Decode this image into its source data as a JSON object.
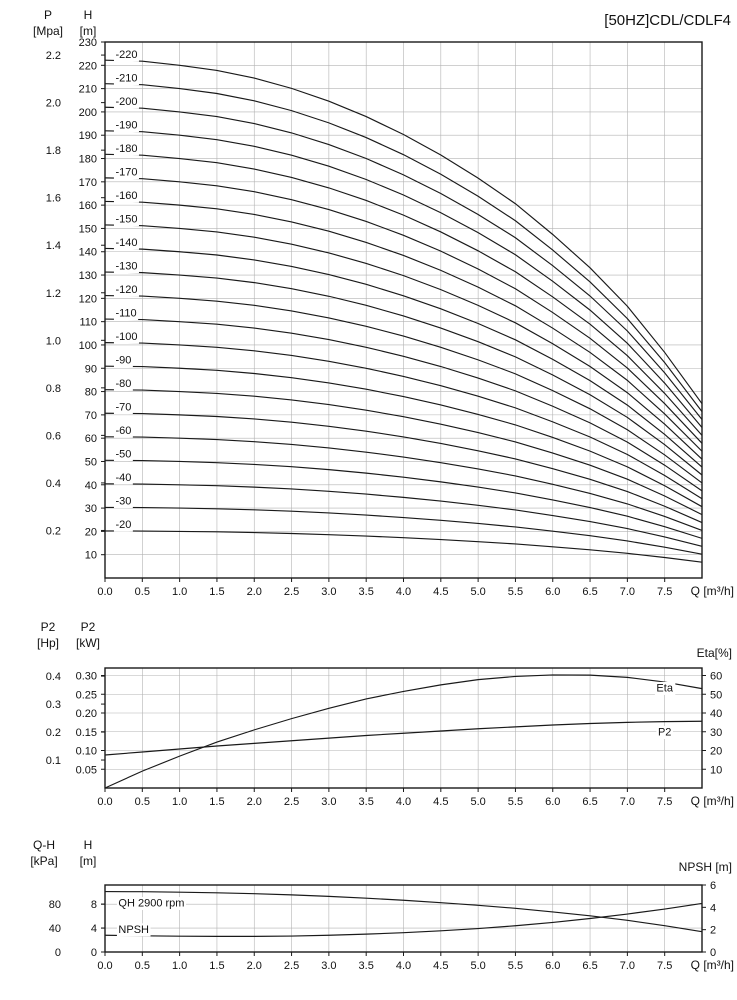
{
  "chart_data": [
    {
      "type": "line",
      "name": "head-capacity",
      "title": "[50HZ]CDL/CDLF4",
      "x": {
        "label": "Q [m³/h]",
        "min": 0,
        "max": 8,
        "tick_step": 0.5,
        "tick_max": 7.5
      },
      "axes": {
        "left_outer": {
          "title": "P",
          "unit": "[Mpa]",
          "max": 2.255,
          "ticks": [
            "0.2",
            "0.4",
            "0.6",
            "0.8",
            "1.0",
            "1.2",
            "1.4",
            "1.6",
            "1.8",
            "2.0",
            "2.2"
          ]
        },
        "left_inner": {
          "title": "H",
          "unit": "[m]",
          "max": 230,
          "ticks": [
            "10",
            "20",
            "30",
            "40",
            "50",
            "60",
            "70",
            "80",
            "90",
            "100",
            "110",
            "120",
            "130",
            "140",
            "150",
            "160",
            "170",
            "180",
            "190",
            "200",
            "210",
            "220",
            "230"
          ]
        }
      },
      "q": [
        0,
        0.5,
        1,
        1.5,
        2,
        2.5,
        3,
        3.5,
        4,
        4.5,
        5,
        5.5,
        6,
        6.5,
        7,
        7.5,
        8
      ],
      "per_stage_head": [
        10.1,
        10.08,
        10.0,
        9.9,
        9.75,
        9.55,
        9.3,
        9.0,
        8.65,
        8.25,
        7.8,
        7.3,
        6.7,
        6.05,
        5.3,
        4.4,
        3.4
      ],
      "stage_curves": [
        {
          "label": "-220",
          "stages": 22
        },
        {
          "label": "-210",
          "stages": 21
        },
        {
          "label": "-200",
          "stages": 20
        },
        {
          "label": "-190",
          "stages": 19
        },
        {
          "label": "-180",
          "stages": 18
        },
        {
          "label": "-170",
          "stages": 17
        },
        {
          "label": "-160",
          "stages": 16
        },
        {
          "label": "-150",
          "stages": 15
        },
        {
          "label": "-140",
          "stages": 14
        },
        {
          "label": "-130",
          "stages": 13
        },
        {
          "label": "-120",
          "stages": 12
        },
        {
          "label": "-110",
          "stages": 11
        },
        {
          "label": "-100",
          "stages": 10
        },
        {
          "label": "-90",
          "stages": 9
        },
        {
          "label": "-80",
          "stages": 8
        },
        {
          "label": "-70",
          "stages": 7
        },
        {
          "label": "-60",
          "stages": 6
        },
        {
          "label": "-50",
          "stages": 5
        },
        {
          "label": "-40",
          "stages": 4
        },
        {
          "label": "-30",
          "stages": 3
        },
        {
          "label": "-20",
          "stages": 2
        }
      ],
      "annotations": []
    },
    {
      "type": "line",
      "name": "power-efficiency",
      "x": {
        "label": "Q [m³/h]",
        "min": 0,
        "max": 8,
        "tick_step": 0.5,
        "tick_max": 7.5
      },
      "axes": {
        "left_outer": {
          "title": "P2",
          "unit": "[Hp]",
          "max": 0.429,
          "ticks": [
            "0.1",
            "0.2",
            "0.3",
            "0.4"
          ]
        },
        "left_inner": {
          "title": "P2",
          "unit": "[kW]",
          "max": 0.32,
          "ticks": [
            "0.05",
            "0.10",
            "0.15",
            "0.20",
            "0.25",
            "0.30"
          ]
        },
        "right": {
          "title": "Eta[%]",
          "max": 64,
          "ticks": [
            "10",
            "20",
            "30",
            "40",
            "50",
            "60"
          ]
        }
      },
      "series": [
        {
          "name": "Eta",
          "axis": "right",
          "x": [
            0,
            0.5,
            1,
            1.5,
            2,
            2.5,
            3,
            3.5,
            4,
            4.5,
            5,
            5.5,
            6,
            6.5,
            7,
            7.5,
            8
          ],
          "values": [
            0,
            9,
            17,
            24.5,
            31,
            37,
            42.5,
            47.5,
            51.5,
            55,
            57.8,
            59.5,
            60.3,
            60.2,
            59,
            56.5,
            53
          ]
        },
        {
          "name": "P2",
          "axis": "left",
          "x": [
            0,
            0.5,
            1,
            1.5,
            2,
            2.5,
            3,
            3.5,
            4,
            4.5,
            5,
            5.5,
            6,
            6.5,
            7,
            7.5,
            8
          ],
          "values": [
            0.088,
            0.096,
            0.104,
            0.112,
            0.119,
            0.126,
            0.133,
            0.14,
            0.146,
            0.152,
            0.158,
            0.163,
            0.168,
            0.172,
            0.175,
            0.177,
            0.178
          ]
        }
      ],
      "annotations": [
        {
          "text": "Eta",
          "x": 7.5,
          "v": 51.5,
          "axis": "right"
        },
        {
          "text": "P2",
          "x": 7.5,
          "v": 0.14,
          "axis": "left"
        }
      ]
    },
    {
      "type": "line",
      "name": "qh-npsh",
      "x": {
        "label": "Q [m³/h]",
        "min": 0,
        "max": 8,
        "tick_step": 0.5,
        "tick_max": 7.5
      },
      "axes": {
        "left_outer": {
          "title": "Q-H",
          "unit": "[kPa]",
          "max": 112,
          "ticks": [
            "0",
            "40",
            "80"
          ]
        },
        "left_inner": {
          "title": "H",
          "unit": "[m]",
          "max": 11.2,
          "ticks": [
            "0",
            "4",
            "8"
          ]
        },
        "right": {
          "title": "NPSH [m]",
          "max": 6,
          "ticks": [
            "0",
            "2",
            "4",
            "6"
          ]
        }
      },
      "series": [
        {
          "name": "QH 2900 rpm",
          "axis": "left",
          "x": [
            0,
            0.5,
            1,
            1.5,
            2,
            2.5,
            3,
            3.5,
            4,
            4.5,
            5,
            5.5,
            6,
            6.5,
            7,
            7.5,
            8
          ],
          "values": [
            10.1,
            10.08,
            10.0,
            9.9,
            9.75,
            9.55,
            9.3,
            9.0,
            8.65,
            8.25,
            7.8,
            7.3,
            6.7,
            6.05,
            5.3,
            4.4,
            3.4
          ]
        },
        {
          "name": "NPSH",
          "axis": "right",
          "x": [
            0,
            0.5,
            1,
            1.5,
            2,
            2.5,
            3,
            3.5,
            4,
            4.5,
            5,
            5.5,
            6,
            6.5,
            7,
            7.5,
            8
          ],
          "values": [
            1.5,
            1.45,
            1.42,
            1.4,
            1.4,
            1.43,
            1.5,
            1.6,
            1.73,
            1.9,
            2.1,
            2.35,
            2.65,
            3.0,
            3.4,
            3.85,
            4.35
          ]
        }
      ],
      "annotations": [
        {
          "text": "QH 2900 rpm",
          "x": 0.18,
          "v": 7.6,
          "axis": "left",
          "anchor": "start"
        },
        {
          "text": "NPSH",
          "x": 0.18,
          "v": 3.2,
          "axis": "left",
          "anchor": "start"
        }
      ]
    }
  ]
}
